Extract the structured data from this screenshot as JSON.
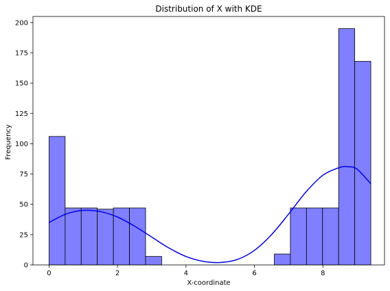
{
  "chart_data": {
    "type": "bar",
    "title": "Distribution of X with KDE",
    "xlabel": "X-coordinate",
    "ylabel": "Frequency",
    "xlim": [
      -0.47,
      9.8
    ],
    "ylim": [
      0,
      205
    ],
    "xticks": [
      0,
      2,
      4,
      6,
      8
    ],
    "yticks": [
      0,
      25,
      50,
      75,
      100,
      125,
      150,
      175,
      200
    ],
    "grid": false,
    "bin_edges": [
      0.0,
      0.47,
      0.94,
      1.41,
      1.88,
      2.35,
      2.82,
      3.29,
      3.76,
      4.23,
      4.7,
      5.17,
      5.64,
      6.11,
      6.58,
      7.05,
      7.52,
      7.99,
      8.46,
      8.93,
      9.4
    ],
    "counts": [
      106,
      47,
      47,
      46,
      47,
      47,
      7,
      0,
      0,
      0,
      0,
      0,
      0,
      0,
      9,
      47,
      47,
      47,
      195,
      168
    ],
    "kde": {
      "x": [
        0,
        0.5,
        1.0,
        1.5,
        2.0,
        2.5,
        3.0,
        3.5,
        4.0,
        4.5,
        5.0,
        5.5,
        6.0,
        6.5,
        7.0,
        7.5,
        8.0,
        8.5,
        8.75,
        9.0,
        9.4
      ],
      "y": [
        35,
        42,
        45,
        44,
        39.5,
        32,
        23,
        14,
        7,
        3,
        2,
        4.5,
        12,
        25,
        42,
        60,
        74,
        80.5,
        81,
        79,
        67
      ]
    },
    "colors": {
      "bar_fill": "#7f7fff",
      "bar_stroke": "#000000",
      "kde_line": "#0000dd"
    }
  }
}
